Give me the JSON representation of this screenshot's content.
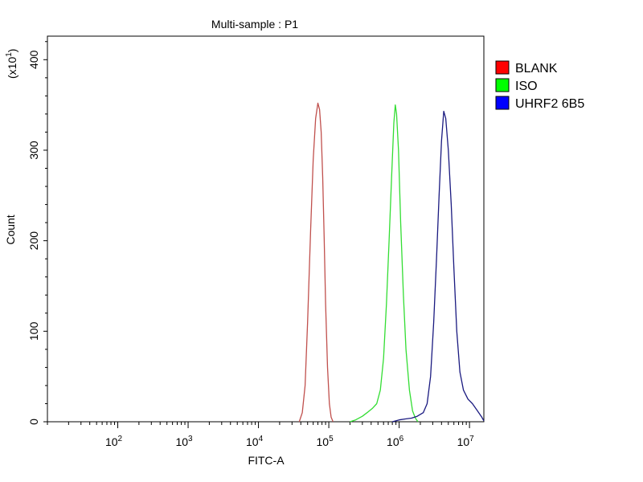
{
  "chart_data": {
    "type": "line",
    "title": "Multi-sample : P1",
    "xlabel": "FITC-A",
    "ylabel": "Count",
    "y_multiplier": "(x10",
    "y_multiplier_exp": "1",
    "y_multiplier_close": ")",
    "x_scale": "log",
    "xlim": [
      10,
      16000000
    ],
    "ylim": [
      0,
      426
    ],
    "grid": false,
    "legend_position": "right",
    "y_ticks": [
      0,
      100,
      200,
      300,
      400
    ],
    "y_tick_labels": [
      "0",
      "100",
      "200",
      "300",
      "400"
    ],
    "x_ticks": [
      100,
      1000,
      10000,
      100000,
      1000000,
      10000000
    ],
    "x_tick_labels": [
      {
        "base": "10",
        "exp": "2"
      },
      {
        "base": "10",
        "exp": "3"
      },
      {
        "base": "10",
        "exp": "4"
      },
      {
        "base": "10",
        "exp": "5"
      },
      {
        "base": "10",
        "exp": "6"
      },
      {
        "base": "10",
        "exp": "7"
      }
    ],
    "series": [
      {
        "name": "BLANK",
        "color": "#c0504d",
        "legend_color": "#ff0000",
        "points": [
          [
            38000,
            0
          ],
          [
            42000,
            10
          ],
          [
            46000,
            40
          ],
          [
            50000,
            110
          ],
          [
            55000,
            210
          ],
          [
            60000,
            290
          ],
          [
            65000,
            335
          ],
          [
            70000,
            352
          ],
          [
            74000,
            345
          ],
          [
            78000,
            320
          ],
          [
            82000,
            270
          ],
          [
            86000,
            200
          ],
          [
            90000,
            130
          ],
          [
            96000,
            60
          ],
          [
            102000,
            20
          ],
          [
            108000,
            5
          ],
          [
            115000,
            0
          ]
        ]
      },
      {
        "name": "ISO",
        "color": "#33dd33",
        "legend_color": "#00ff00",
        "points": [
          [
            200000,
            0
          ],
          [
            240000,
            2
          ],
          [
            300000,
            6
          ],
          [
            350000,
            10
          ],
          [
            420000,
            15
          ],
          [
            480000,
            20
          ],
          [
            540000,
            35
          ],
          [
            600000,
            70
          ],
          [
            660000,
            130
          ],
          [
            720000,
            200
          ],
          [
            780000,
            270
          ],
          [
            840000,
            330
          ],
          [
            880000,
            350
          ],
          [
            920000,
            340
          ],
          [
            980000,
            300
          ],
          [
            1050000,
            220
          ],
          [
            1150000,
            140
          ],
          [
            1250000,
            80
          ],
          [
            1400000,
            35
          ],
          [
            1550000,
            12
          ],
          [
            1700000,
            4
          ],
          [
            1850000,
            0
          ]
        ]
      },
      {
        "name": "UHRF2 6B5",
        "color": "#1a1a80",
        "legend_color": "#0000ff",
        "points": [
          [
            800000,
            0
          ],
          [
            1000000,
            2
          ],
          [
            1200000,
            3
          ],
          [
            1500000,
            4
          ],
          [
            1800000,
            6
          ],
          [
            2200000,
            10
          ],
          [
            2500000,
            20
          ],
          [
            2800000,
            50
          ],
          [
            3100000,
            110
          ],
          [
            3400000,
            180
          ],
          [
            3700000,
            250
          ],
          [
            4000000,
            310
          ],
          [
            4300000,
            343
          ],
          [
            4600000,
            335
          ],
          [
            5000000,
            300
          ],
          [
            5500000,
            240
          ],
          [
            6000000,
            170
          ],
          [
            6600000,
            100
          ],
          [
            7300000,
            55
          ],
          [
            8200000,
            35
          ],
          [
            9500000,
            25
          ],
          [
            11000000,
            20
          ],
          [
            13000000,
            12
          ],
          [
            15000000,
            5
          ],
          [
            16000000,
            1
          ]
        ]
      }
    ]
  }
}
